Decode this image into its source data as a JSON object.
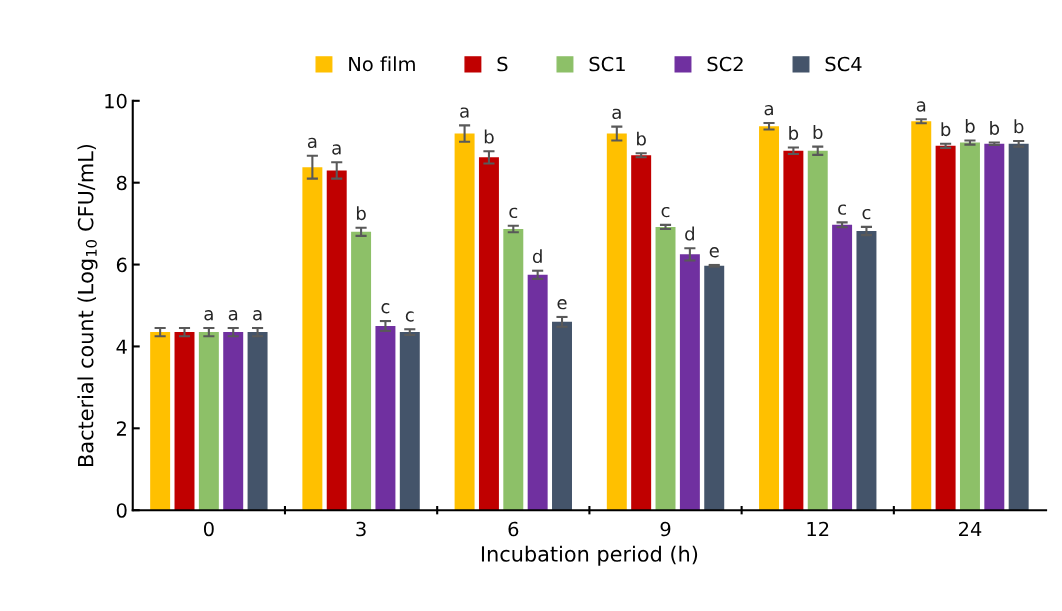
{
  "chart_data": {
    "type": "bar",
    "xlabel": "Incubation period (h)",
    "ylabel": "Bacterial count (Log$_{10}$ CFU/mL)",
    "categories": [
      "0",
      "3",
      "6",
      "9",
      "12",
      "24"
    ],
    "ylim": [
      0,
      10
    ],
    "yticks": [
      0,
      2,
      4,
      6,
      8,
      10
    ],
    "grid": false,
    "legend": "top",
    "series": [
      {
        "name": "No film",
        "color": "#ffc000",
        "values": [
          4.35,
          8.38,
          9.2,
          9.2,
          9.38,
          9.5
        ],
        "errors": [
          0.1,
          0.28,
          0.2,
          0.17,
          0.08,
          0.05
        ],
        "value_labels": [
          null,
          "a",
          "a",
          "a",
          "a",
          "a"
        ]
      },
      {
        "name": "S",
        "color": "#c00000",
        "values": [
          4.35,
          8.3,
          8.62,
          8.67,
          8.78,
          8.9
        ],
        "errors": [
          0.1,
          0.2,
          0.15,
          0.05,
          0.08,
          0.05
        ],
        "value_labels": [
          null,
          "a",
          "b",
          "b",
          "b",
          "b"
        ]
      },
      {
        "name": "SC1",
        "color": "#8dc068",
        "values": [
          4.35,
          6.8,
          6.87,
          6.92,
          8.78,
          8.98
        ],
        "errors": [
          0.1,
          0.1,
          0.08,
          0.05,
          0.1,
          0.05
        ],
        "value_labels": [
          "a",
          "b",
          "c",
          "c",
          "b",
          "b"
        ]
      },
      {
        "name": "SC2",
        "color": "#7030a0",
        "values": [
          4.35,
          4.5,
          5.75,
          6.25,
          6.97,
          8.95
        ],
        "errors": [
          0.1,
          0.12,
          0.1,
          0.15,
          0.06,
          0.03
        ],
        "value_labels": [
          "a",
          "c",
          "d",
          "d",
          "c",
          "b"
        ]
      },
      {
        "name": "SC4",
        "color": "#44546a",
        "values": [
          4.35,
          4.35,
          4.6,
          5.97,
          6.82,
          8.95
        ],
        "errors": [
          0.1,
          0.07,
          0.12,
          0.02,
          0.1,
          0.07
        ],
        "value_labels": [
          "a",
          "c",
          "e",
          "e",
          "c",
          "b"
        ]
      }
    ]
  }
}
